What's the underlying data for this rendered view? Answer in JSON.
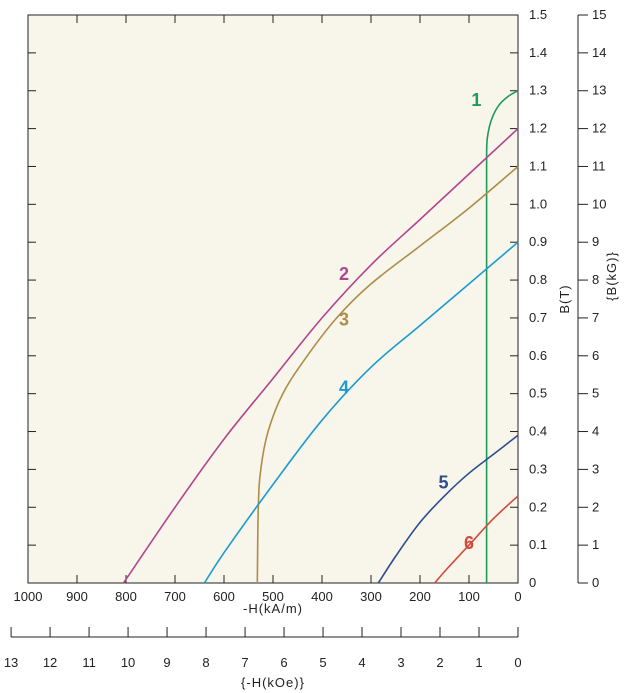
{
  "chart_data": {
    "type": "line",
    "xlabel": "-H(kA/m)",
    "ylabel": "B(T)",
    "xlabel_secondary": "{-H(kOe)}",
    "ylabel_secondary": "{B(kG)}",
    "xlim": [
      1000,
      0
    ],
    "ylim": [
      0,
      1.5
    ],
    "x_ticks": [
      1000,
      900,
      800,
      700,
      600,
      500,
      400,
      300,
      200,
      100,
      0
    ],
    "y_ticks": [
      "0",
      "0.1",
      "0.2",
      "0.3",
      "0.4",
      "0.5",
      "0.6",
      "0.7",
      "0.8",
      "0.9",
      "1.0",
      "1.1",
      "1.2",
      "1.3",
      "1.4",
      "1.5"
    ],
    "x2_ticks": [
      13,
      12,
      11,
      10,
      9,
      8,
      7,
      6,
      5,
      4,
      3,
      2,
      1,
      0
    ],
    "y2_ticks": [
      0,
      1,
      2,
      3,
      4,
      5,
      6,
      7,
      8,
      9,
      10,
      11,
      12,
      13,
      14,
      15
    ],
    "background": "#f8f5ea",
    "grid": false,
    "series": [
      {
        "name": "1",
        "color": "#1f9a5a",
        "points": [
          [
            64,
            0
          ],
          [
            64,
            0.5
          ],
          [
            64,
            1.0
          ],
          [
            64,
            1.1
          ],
          [
            63,
            1.17
          ],
          [
            55,
            1.22
          ],
          [
            40,
            1.26
          ],
          [
            20,
            1.285
          ],
          [
            0,
            1.3
          ]
        ],
        "label_pos": [
          85,
          1.26
        ]
      },
      {
        "name": "2",
        "color": "#b0468f",
        "points": [
          [
            805,
            0
          ],
          [
            700,
            0.2
          ],
          [
            600,
            0.38
          ],
          [
            500,
            0.54
          ],
          [
            400,
            0.7
          ],
          [
            300,
            0.84
          ],
          [
            200,
            0.96
          ],
          [
            100,
            1.08
          ],
          [
            0,
            1.2
          ]
        ],
        "label_pos": [
          355,
          0.8
        ]
      },
      {
        "name": "3",
        "color": "#ad8d49",
        "points": [
          [
            532,
            0
          ],
          [
            530,
            0.2
          ],
          [
            525,
            0.3
          ],
          [
            510,
            0.4
          ],
          [
            480,
            0.5
          ],
          [
            430,
            0.6
          ],
          [
            370,
            0.7
          ],
          [
            300,
            0.79
          ],
          [
            200,
            0.89
          ],
          [
            100,
            0.99
          ],
          [
            0,
            1.1
          ]
        ],
        "label_pos": [
          355,
          0.68
        ]
      },
      {
        "name": "4",
        "color": "#1b9bd1",
        "points": [
          [
            640,
            0
          ],
          [
            600,
            0.08
          ],
          [
            500,
            0.26
          ],
          [
            400,
            0.43
          ],
          [
            300,
            0.57
          ],
          [
            200,
            0.68
          ],
          [
            100,
            0.79
          ],
          [
            0,
            0.9
          ]
        ],
        "label_pos": [
          355,
          0.5
        ]
      },
      {
        "name": "5",
        "color": "#2c4d8e",
        "points": [
          [
            285,
            0
          ],
          [
            250,
            0.07
          ],
          [
            200,
            0.16
          ],
          [
            150,
            0.23
          ],
          [
            100,
            0.29
          ],
          [
            50,
            0.34
          ],
          [
            0,
            0.39
          ]
        ],
        "label_pos": [
          152,
          0.25
        ]
      },
      {
        "name": "6",
        "color": "#d24b3a",
        "points": [
          [
            170,
            0
          ],
          [
            150,
            0.03
          ],
          [
            100,
            0.1
          ],
          [
            50,
            0.17
          ],
          [
            0,
            0.23
          ]
        ],
        "label_pos": [
          100,
          0.09
        ]
      }
    ]
  }
}
